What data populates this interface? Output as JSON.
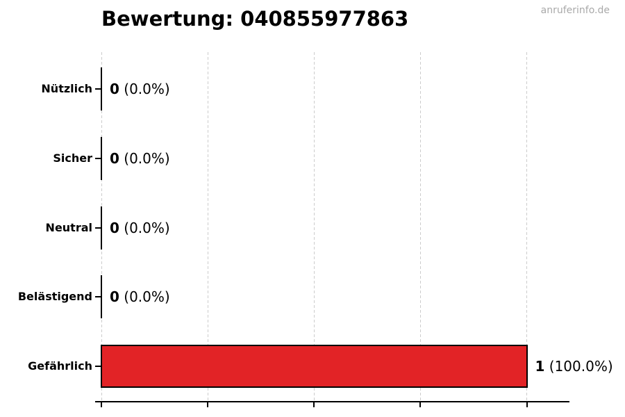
{
  "header": {
    "title": "Bewertung: 040855977863",
    "watermark": "anruferinfo.de"
  },
  "chart_data": {
    "type": "bar",
    "orientation": "horizontal",
    "title": "Bewertung: 040855977863",
    "categories": [
      "Nützlich",
      "Sicher",
      "Neutral",
      "Belästigend",
      "Gefährlich"
    ],
    "values": [
      0,
      0,
      0,
      0,
      1
    ],
    "percentages": [
      0.0,
      0.0,
      0.0,
      0.0,
      100.0
    ],
    "count_labels": [
      "0",
      "0",
      "0",
      "0",
      "1"
    ],
    "pct_labels": [
      "(0.0%)",
      "(0.0%)",
      "(0.0%)",
      "(0.0%)",
      "(100.0%)"
    ],
    "xlim": [
      0,
      1.1
    ],
    "xticks": [
      0,
      0.25,
      0.5,
      0.75,
      1.0
    ],
    "xtick_labels": [
      "",
      "",
      "",
      "",
      ""
    ],
    "grid": true,
    "legend": "none",
    "bar_color": "#e22326",
    "bar_edge_color": "#000000",
    "grid_color": "#cccccc",
    "axis_color": "#000000"
  }
}
